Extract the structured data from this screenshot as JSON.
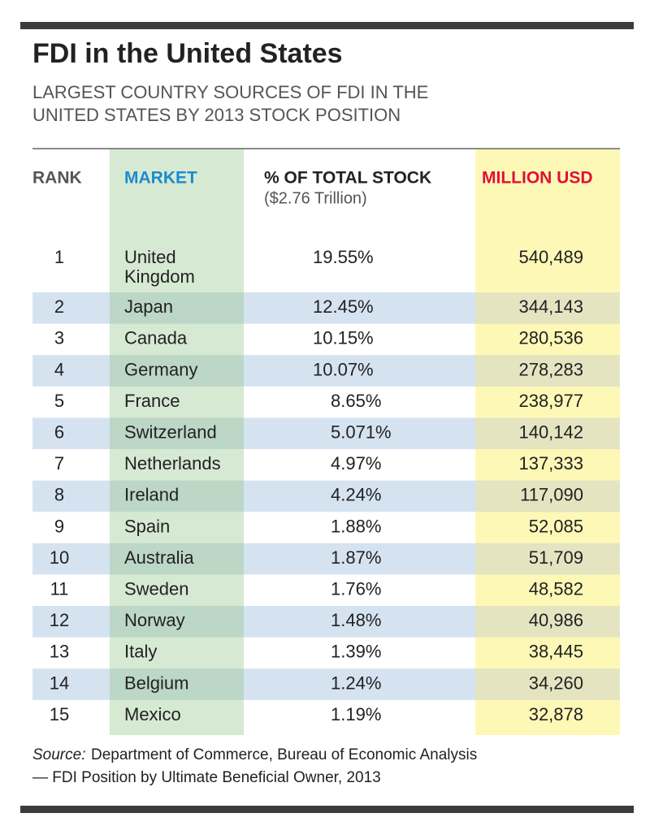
{
  "title": "FDI in the United States",
  "subtitle": [
    "LARGEST COUNTRY SOURCES OF FDI IN THE",
    "UNITED STATES BY 2013 STOCK POSITION"
  ],
  "table": {
    "header": {
      "rank": "RANK",
      "market": "MARKET",
      "share": "% OF TOTAL STOCK",
      "share_note": "($2.76 Trillion)",
      "usd": "MILLION USD"
    },
    "rows": [
      [
        "1",
        "United Kingdom",
        "19.55%",
        "540,489"
      ],
      [
        "2",
        "Japan",
        "12.45%",
        "344,143"
      ],
      [
        "3",
        "Canada",
        "10.15%",
        "280,536"
      ],
      [
        "4",
        "Germany",
        "10.07%",
        "278,283"
      ],
      [
        "5",
        "France",
        "8.65%",
        "238,977"
      ],
      [
        "6",
        "Switzerland",
        "5.071%",
        "140,142"
      ],
      [
        "7",
        "Netherlands",
        "4.97%",
        "137,333"
      ],
      [
        "8",
        "Ireland",
        "4.24%",
        "117,090"
      ],
      [
        "9",
        "Spain",
        "1.88%",
        "52,085"
      ],
      [
        "10",
        "Australia",
        "1.87%",
        "51,709"
      ],
      [
        "11",
        "Sweden",
        "1.76%",
        "48,582"
      ],
      [
        "12",
        "Norway",
        "1.48%",
        "40,986"
      ],
      [
        "13",
        "Italy",
        "1.39%",
        "38,445"
      ],
      [
        "14",
        "Belgium",
        "1.24%",
        "34,260"
      ],
      [
        "15",
        "Mexico",
        "1.19%",
        "32,878"
      ]
    ]
  },
  "source": {
    "label": "Source:",
    "lines": [
      "Department of Commerce, Bureau of Economic Analysis",
      "— FDI Position by Ultimate Beneficial Owner, 2013"
    ]
  }
}
